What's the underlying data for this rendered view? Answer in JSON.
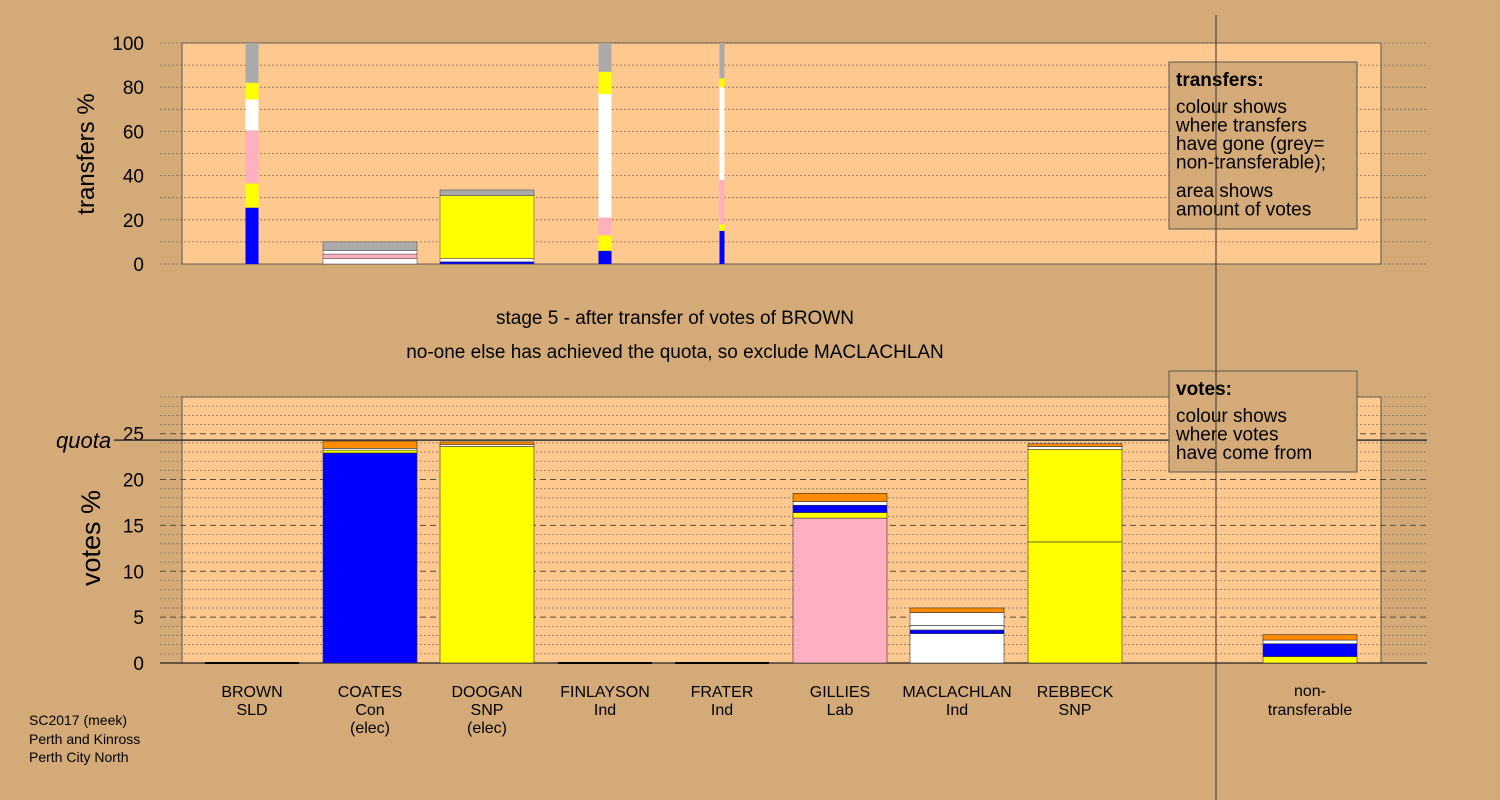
{
  "chart_data": {
    "type": "bar",
    "stage_title": "stage 5 - after transfer of votes of BROWN",
    "stage_subtitle": "no-one else has achieved the quota, so exclude MACLACHLAN",
    "candidates": [
      {
        "name": "BROWN",
        "party": "SLD",
        "status": ""
      },
      {
        "name": "COATES",
        "party": "Con",
        "status": "(elec)"
      },
      {
        "name": "DOOGAN",
        "party": "SNP",
        "status": "(elec)"
      },
      {
        "name": "FINLAYSON",
        "party": "Ind",
        "status": ""
      },
      {
        "name": "FRATER",
        "party": "Ind",
        "status": ""
      },
      {
        "name": "GILLIES",
        "party": "Lab",
        "status": ""
      },
      {
        "name": "MACLACHLAN",
        "party": "Ind",
        "status": ""
      },
      {
        "name": "REBBECK",
        "party": "SNP",
        "status": ""
      }
    ],
    "nontransferable_label": [
      "non-",
      "transferable"
    ],
    "colors": {
      "background": "#d4aa78",
      "plot_area": "#fec98f",
      "Con": "#0000ff",
      "SNP": "#ffff00",
      "Lab": "#ffb0c0",
      "Ind": "#ffffff",
      "SLD": "#ff8c00",
      "nontransferable": "#aaaaaa"
    },
    "transfers_panel": {
      "ylabel": "transfers %",
      "ylim": [
        0,
        100
      ],
      "yticks": [
        0,
        20,
        40,
        60,
        80,
        100
      ],
      "legend_title": "transfers:",
      "legend_lines_1": [
        "colour shows",
        "where transfers",
        "have gone (grey=",
        "non-transferable);"
      ],
      "legend_lines_2": [
        "area shows",
        "amount of votes"
      ],
      "bars": [
        {
          "slot": 0,
          "width": "narrow",
          "segments": [
            {
              "party": "Con",
              "value": 25.5
            },
            {
              "party": "SNP",
              "value": 11
            },
            {
              "party": "Lab",
              "value": 24
            },
            {
              "party": "Ind",
              "value": 14
            },
            {
              "party": "SNP",
              "value": 7.5
            },
            {
              "party": "nontransferable",
              "value": 18
            }
          ]
        },
        {
          "slot": 1,
          "width": "full",
          "segments": [
            {
              "party": "Ind",
              "value": 2.5
            },
            {
              "party": "Lab",
              "value": 2
            },
            {
              "party": "Ind",
              "value": 1.5
            },
            {
              "party": "nontransferable",
              "value": 4
            }
          ]
        },
        {
          "slot": 2,
          "width": "full",
          "segments": [
            {
              "party": "Con",
              "value": 1
            },
            {
              "party": "Ind",
              "value": 1.5
            },
            {
              "party": "SNP",
              "value": 28.5
            },
            {
              "party": "nontransferable",
              "value": 2.5
            }
          ]
        },
        {
          "slot": 3,
          "width": "narrow",
          "segments": [
            {
              "party": "Con",
              "value": 6
            },
            {
              "party": "SNP",
              "value": 7
            },
            {
              "party": "Lab",
              "value": 8
            },
            {
              "party": "Ind",
              "value": 56
            },
            {
              "party": "SNP",
              "value": 10
            },
            {
              "party": "nontransferable",
              "value": 13
            }
          ]
        },
        {
          "slot": 4,
          "width": "thin",
          "segments": [
            {
              "party": "Con",
              "value": 15
            },
            {
              "party": "SNP",
              "value": 3
            },
            {
              "party": "Lab",
              "value": 20
            },
            {
              "party": "Ind",
              "value": 42
            },
            {
              "party": "SNP",
              "value": 4
            },
            {
              "party": "nontransferable",
              "value": 16
            }
          ]
        }
      ]
    },
    "votes_panel": {
      "ylabel": "votes %",
      "ylim": [
        0,
        29
      ],
      "yticks": [
        0,
        5,
        10,
        15,
        20,
        25
      ],
      "quota_label": "quota",
      "quota_value": 24.3,
      "legend_title": "votes:",
      "legend_lines": [
        "colour shows",
        "where votes",
        "have come from"
      ],
      "bars": [
        {
          "slot": 0,
          "segments": []
        },
        {
          "slot": 1,
          "segments": [
            {
              "party": "Con",
              "value": 22.9
            },
            {
              "party": "SNP",
              "value": 0.3
            },
            {
              "party": "Ind",
              "value": 0.2
            },
            {
              "party": "SLD",
              "value": 0.8
            }
          ]
        },
        {
          "slot": 2,
          "segments": [
            {
              "party": "SNP",
              "value": 23.6
            },
            {
              "party": "Ind",
              "value": 0.2
            },
            {
              "party": "SLD",
              "value": 0.3
            }
          ]
        },
        {
          "slot": 3,
          "segments": []
        },
        {
          "slot": 4,
          "segments": []
        },
        {
          "slot": 5,
          "segments": [
            {
              "party": "Lab",
              "value": 15.8
            },
            {
              "party": "SNP",
              "value": 0.6
            },
            {
              "party": "Con",
              "value": 0.8
            },
            {
              "party": "Ind",
              "value": 0.4
            },
            {
              "party": "SLD",
              "value": 0.9
            }
          ]
        },
        {
          "slot": 6,
          "segments": [
            {
              "party": "Ind",
              "value": 3.2
            },
            {
              "party": "Con",
              "value": 0.4
            },
            {
              "party": "Ind",
              "value": 0.5
            },
            {
              "party": "Ind",
              "value": 1.4
            },
            {
              "party": "SLD",
              "value": 0.5
            }
          ]
        },
        {
          "slot": 7,
          "segments": [
            {
              "party": "SNP",
              "value": 13.2
            },
            {
              "party": "SNP",
              "value": 10.1
            },
            {
              "party": "Ind",
              "value": 0.3
            },
            {
              "party": "SLD",
              "value": 0.3
            }
          ]
        },
        {
          "slot": 8,
          "segments": [
            {
              "party": "SNP",
              "value": 0.7
            },
            {
              "party": "Con",
              "value": 1.4
            },
            {
              "party": "Ind",
              "value": 0.4
            },
            {
              "party": "SLD",
              "value": 0.6
            }
          ]
        }
      ]
    }
  },
  "footer": [
    "SC2017 (meek)",
    "Perth and Kinross",
    "Perth City North"
  ]
}
